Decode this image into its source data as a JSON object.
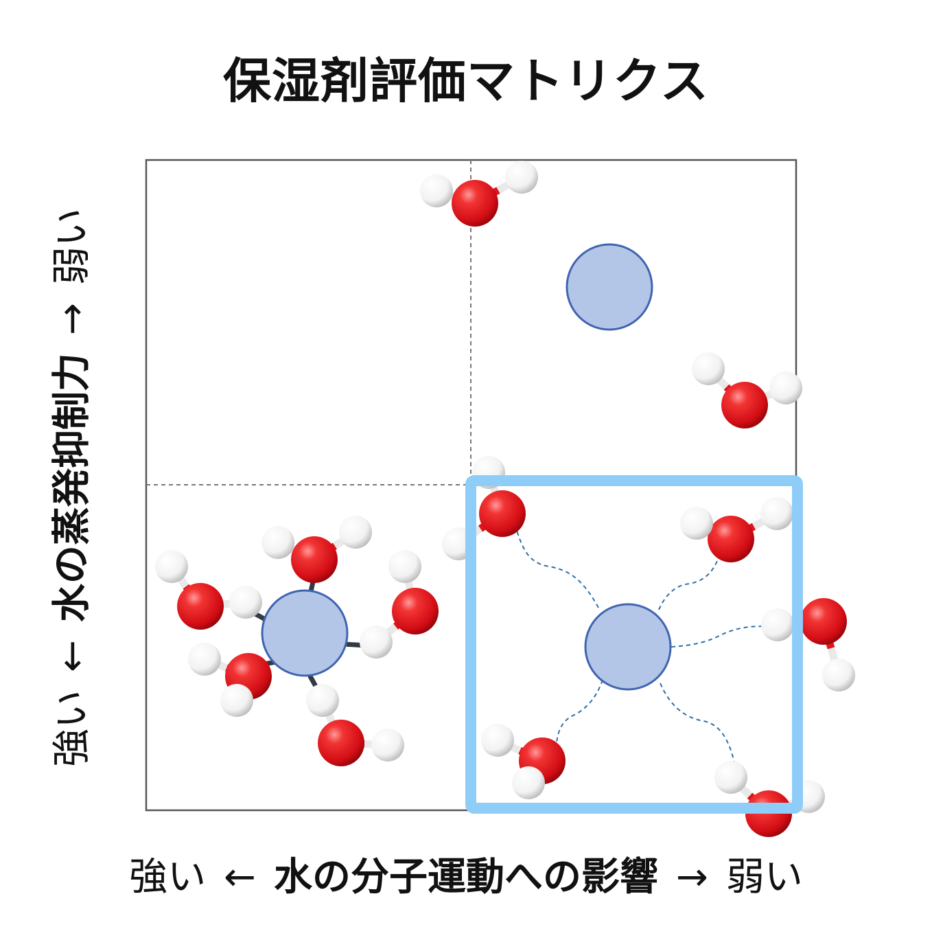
{
  "title": "保湿剤評価マトリクス",
  "y_axis": {
    "low_end": "強い",
    "arrow_left": "←",
    "name": "水の蒸発抑制力",
    "arrow_right": "→",
    "high_end": "弱い"
  },
  "x_axis": {
    "low_end": "強い",
    "arrow_left": "←",
    "name": "水の分子運動への影響",
    "arrow_right": "→",
    "high_end": "弱い"
  },
  "colors": {
    "frame": "#555555",
    "highlight": "#8ecdf8",
    "solute": "#b4c6e7",
    "solute_edge": "#3f64b0",
    "oxygen": "#e0141c",
    "hydrogen": "#ffffff",
    "hbond": "#2f6fa8"
  }
}
